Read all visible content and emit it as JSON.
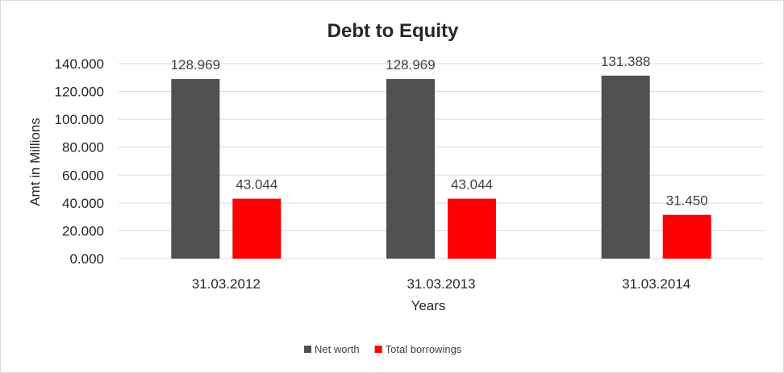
{
  "chart_data": {
    "type": "bar",
    "title": "Debt to Equity",
    "xlabel": "Years",
    "ylabel": "Amt in Millions",
    "categories": [
      "31.03.2012",
      "31.03.2013",
      "31.03.2014"
    ],
    "series": [
      {
        "name": "Net worth",
        "values": [
          128.969,
          128.969,
          131.388
        ],
        "labels": [
          "128.969",
          "128.969",
          "131.388"
        ],
        "color": "#505050"
      },
      {
        "name": "Total borrowings",
        "values": [
          43.044,
          43.044,
          31.45
        ],
        "labels": [
          "43.044",
          "43.044",
          "31.450"
        ],
        "color": "#ff0000"
      }
    ],
    "ylim": [
      0,
      140
    ],
    "yticks": [
      "0.000",
      "20.000",
      "40.000",
      "60.000",
      "80.000",
      "100.000",
      "120.000",
      "140.000"
    ],
    "grid": true,
    "legend": "bottom"
  }
}
